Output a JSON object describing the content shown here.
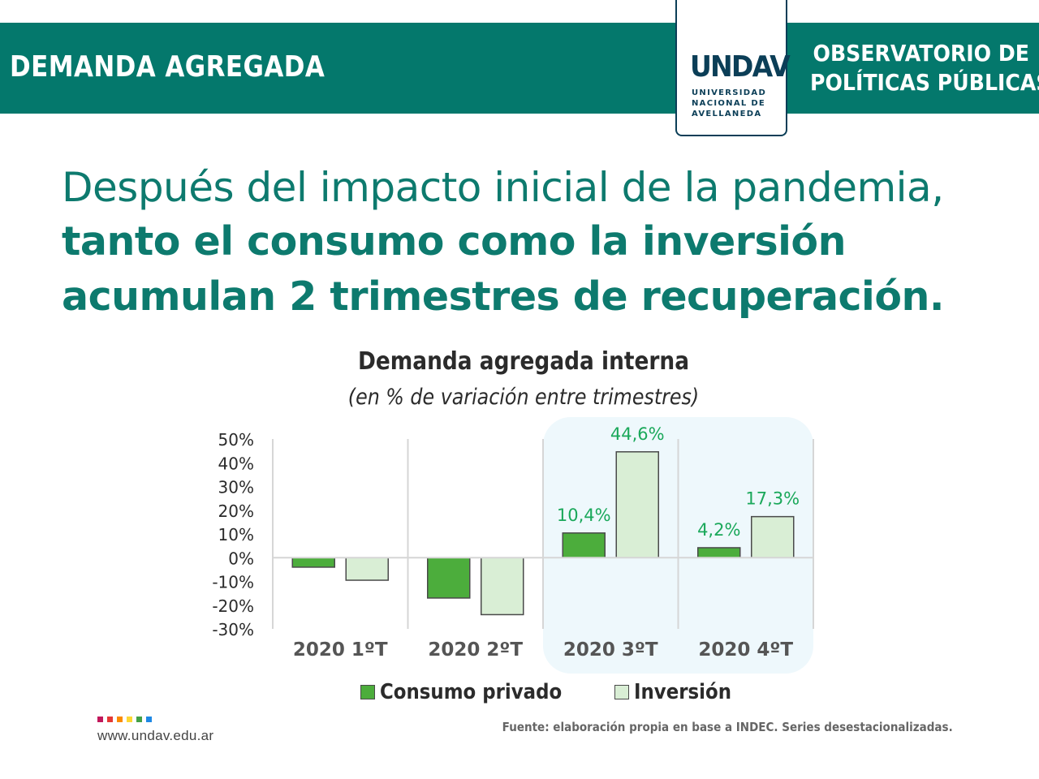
{
  "header": {
    "title": "DEMANDA AGREGADA",
    "observatory_line1": "OBSERVATORIO DE",
    "observatory_line2": "POLÍTICAS PÚBLICAS",
    "logo_mark": "UNDAV",
    "logo_line1": "UNIVERSIDAD",
    "logo_line2": "NACIONAL DE",
    "logo_line3": "AVELLANEDA",
    "bar_color": "#04786c"
  },
  "headline": {
    "line1": "Después del impacto inicial de la pandemia,",
    "line2": "tanto el consumo como la inversión",
    "line3": "acumulan 2 trimestres de recuperación."
  },
  "chart_data": {
    "type": "bar",
    "title": "Demanda agregada interna",
    "subtitle": "(en % de variación entre trimestres)",
    "categories": [
      "2020 1ºT",
      "2020 2ºT",
      "2020 3ºT",
      "2020 4ºT"
    ],
    "series": [
      {
        "name": "Consumo privado",
        "color": "#4cad3c",
        "values": [
          -4,
          -17,
          10.4,
          4.2
        ],
        "labels": [
          null,
          null,
          "10,4%",
          "4,2%"
        ]
      },
      {
        "name": "Inversión",
        "color": "#d9eed5",
        "values": [
          -9.5,
          -24,
          44.6,
          17.3
        ],
        "labels": [
          null,
          null,
          "44,6%",
          "17,3%"
        ]
      }
    ],
    "ylim": [
      -30,
      50
    ],
    "yticks": [
      50,
      40,
      30,
      20,
      10,
      0,
      -10,
      -20,
      -30
    ],
    "ytick_labels": [
      "50%",
      "40%",
      "30%",
      "20%",
      "10%",
      "0%",
      "-10%",
      "-20%",
      "-30%"
    ],
    "highlighted_categories": [
      "2020 3ºT",
      "2020 4ºT"
    ],
    "highlight_color": "#eef8fc",
    "label_color": "#1aa85a",
    "legend": "bottom"
  },
  "footer": {
    "website": "www.undav.edu.ar",
    "source": "Fuente: elaboración propia en base a INDEC. Series desestacionalizadas.",
    "dot_colors": [
      "#c2185b",
      "#e53935",
      "#fb8c00",
      "#fdd835",
      "#43a047",
      "#1e88e5"
    ]
  }
}
